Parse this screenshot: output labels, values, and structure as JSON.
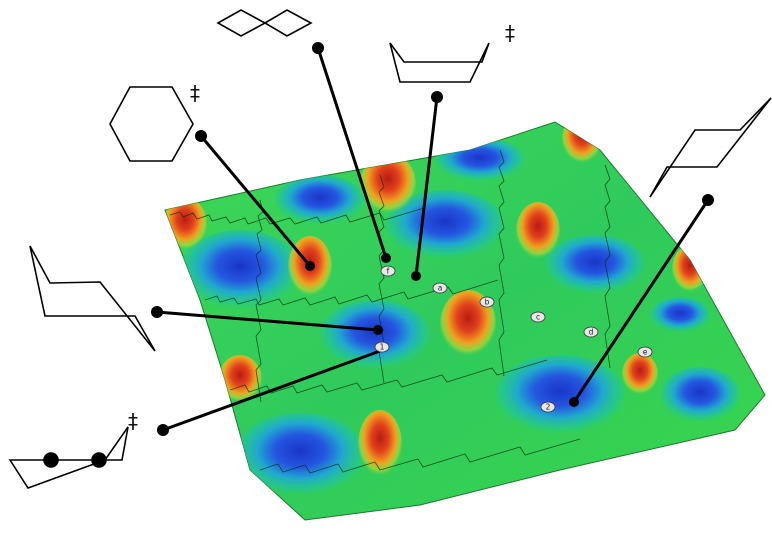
{
  "diagram": {
    "colors": {
      "low": "#1a3bd0",
      "mid": "#22c070",
      "flat": "#3fd24a",
      "high": "#d42a1a",
      "leader": "#000000",
      "marker_fill": "#e6e6e6"
    },
    "transition_state_mark": "‡",
    "surface_sites": {
      "a": "a",
      "b": "b",
      "c": "c",
      "d": "d",
      "e": "e",
      "f": "f",
      "min1": "1",
      "min2": "2",
      "min1b": "1"
    },
    "structures": [
      {
        "name": "twist-boat",
        "marks_transition_state": false
      },
      {
        "name": "half-chair",
        "marks_transition_state": true
      },
      {
        "name": "planar-hexagon",
        "marks_transition_state": true
      },
      {
        "name": "chair-right",
        "marks_transition_state": false
      },
      {
        "name": "chair-left",
        "marks_transition_state": false
      },
      {
        "name": "flattened-chair",
        "marks_transition_state": true
      }
    ]
  }
}
